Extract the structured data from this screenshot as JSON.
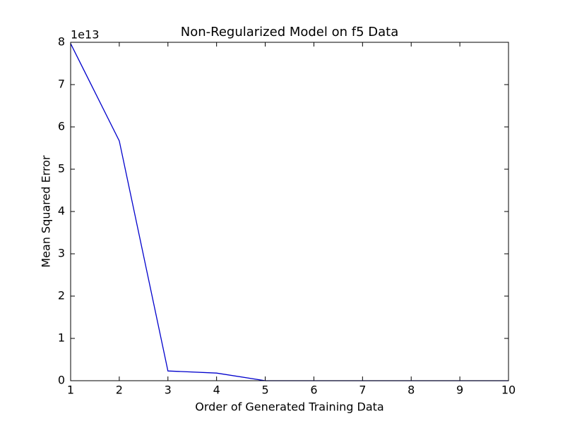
{
  "chart_data": {
    "type": "line",
    "title": "Non-Regularized Model on f5 Data",
    "x_label": "Order of Generated Training Data",
    "y_label": "Mean Squared Error",
    "y_offset_label": "1e13",
    "x": [
      1,
      2,
      3,
      4,
      5,
      6,
      7,
      8,
      9,
      10
    ],
    "series": [
      {
        "name": "MSE",
        "color": "#0000cc",
        "values": [
          7.97,
          5.67,
          0.23,
          0.18,
          0,
          0,
          0,
          0,
          0,
          0
        ]
      }
    ],
    "xlim": [
      1,
      10
    ],
    "xticks": [
      1,
      2,
      3,
      4,
      5,
      6,
      7,
      8,
      9,
      10
    ],
    "ylim": [
      0,
      8
    ],
    "yticks": [
      0,
      1,
      2,
      3,
      4,
      5,
      6,
      7,
      8
    ],
    "grid": false,
    "legend": false
  }
}
